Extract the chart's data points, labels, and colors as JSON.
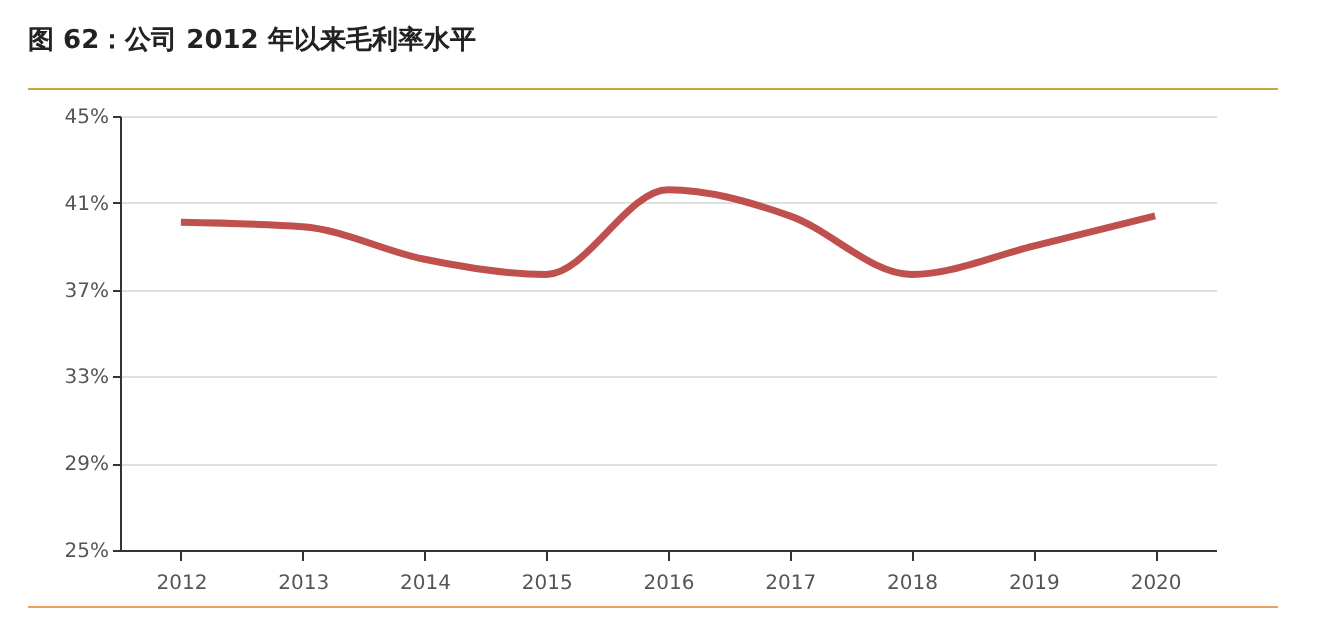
{
  "chart_data": {
    "type": "line",
    "title": "图 62：公司 2012 年以来毛利率水平",
    "categories": [
      "2012",
      "2013",
      "2014",
      "2015",
      "2016",
      "2017",
      "2018",
      "2019",
      "2020"
    ],
    "series": [
      {
        "color": "#c0504d",
        "values": [
          40.1,
          39.9,
          38.4,
          37.7,
          41.6,
          40.4,
          37.7,
          39.0,
          40.4
        ]
      }
    ],
    "ylim": [
      25,
      45
    ],
    "yticks": [
      {
        "value": 25,
        "label": "25%"
      },
      {
        "value": 29,
        "label": "29%"
      },
      {
        "value": 33,
        "label": "33%"
      },
      {
        "value": 37,
        "label": "37%"
      },
      {
        "value": 41,
        "label": "41%"
      },
      {
        "value": 45,
        "label": "45%"
      }
    ],
    "grid": "y",
    "marker": "none",
    "line_style": "solid"
  }
}
